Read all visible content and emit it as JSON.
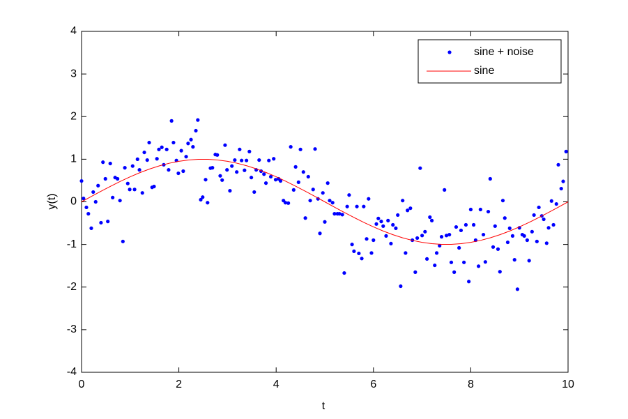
{
  "chart_data": {
    "type": "line",
    "xlabel": "t",
    "ylabel": "y(t)",
    "xlim": [
      0,
      10
    ],
    "xticks": [
      0,
      2,
      4,
      6,
      8,
      10
    ],
    "ylim": [
      -4,
      4
    ],
    "yticks": [
      -4,
      -3,
      -2,
      -1,
      0,
      1,
      2,
      3,
      4
    ],
    "legend": "top-right",
    "series": [
      {
        "name": "sine + noise",
        "color": "#0000ff",
        "style": "markers",
        "x": [
          0,
          0.04,
          0.1,
          0.14,
          0.2,
          0.24,
          0.29,
          0.34,
          0.4,
          0.44,
          0.49,
          0.54,
          0.59,
          0.64,
          0.69,
          0.74,
          0.79,
          0.85,
          0.89,
          0.95,
          0.99,
          1.05,
          1.09,
          1.15,
          1.19,
          1.25,
          1.29,
          1.35,
          1.39,
          1.45,
          1.49,
          1.55,
          1.59,
          1.65,
          1.69,
          1.75,
          1.79,
          1.85,
          1.89,
          1.95,
          1.99,
          2.05,
          2.09,
          2.15,
          2.19,
          2.25,
          2.29,
          2.35,
          2.39,
          2.45,
          2.49,
          2.55,
          2.59,
          2.65,
          2.69,
          2.75,
          2.79,
          2.85,
          2.89,
          2.95,
          2.99,
          3.05,
          3.09,
          3.15,
          3.19,
          3.25,
          3.29,
          3.35,
          3.39,
          3.45,
          3.49,
          3.55,
          3.59,
          3.65,
          3.69,
          3.75,
          3.79,
          3.85,
          3.89,
          3.95,
          3.99,
          4.05,
          4.09,
          4.15,
          4.19,
          4.25,
          4.3,
          4.36,
          4.4,
          4.46,
          4.5,
          4.56,
          4.6,
          4.66,
          4.7,
          4.76,
          4.8,
          4.86,
          4.9,
          4.96,
          5,
          5.06,
          5.1,
          5.16,
          5.2,
          5.26,
          5.3,
          5.36,
          5.4,
          5.46,
          5.5,
          5.56,
          5.6,
          5.66,
          5.7,
          5.76,
          5.8,
          5.86,
          5.9,
          5.96,
          6,
          6.06,
          6.1,
          6.16,
          6.2,
          6.26,
          6.3,
          6.36,
          6.4,
          6.46,
          6.5,
          6.56,
          6.6,
          6.66,
          6.7,
          6.76,
          6.8,
          6.86,
          6.9,
          6.96,
          7,
          7.06,
          7.1,
          7.16,
          7.2,
          7.26,
          7.3,
          7.36,
          7.4,
          7.46,
          7.5,
          7.56,
          7.6,
          7.66,
          7.7,
          7.76,
          7.8,
          7.86,
          7.9,
          7.96,
          8,
          8.06,
          8.1,
          8.16,
          8.2,
          8.26,
          8.3,
          8.36,
          8.4,
          8.46,
          8.5,
          8.56,
          8.6,
          8.66,
          8.7,
          8.76,
          8.8,
          8.86,
          8.9,
          8.96,
          9,
          9.06,
          9.1,
          9.16,
          9.2,
          9.26,
          9.3,
          9.36,
          9.4,
          9.46,
          9.5,
          9.56,
          9.6,
          9.66,
          9.7,
          9.76,
          9.8,
          9.86,
          9.9,
          9.96
        ],
        "values": [
          0.49,
          0.08,
          -0.13,
          -0.28,
          -0.62,
          0.23,
          0,
          0.38,
          -0.49,
          0.93,
          0.54,
          -0.46,
          0.9,
          0.1,
          0.57,
          0.54,
          0.03,
          -0.93,
          0.8,
          0.43,
          0.29,
          0.84,
          0.29,
          1,
          0.75,
          0.21,
          1.16,
          0.98,
          1.39,
          0.34,
          0.36,
          1.01,
          1.23,
          1.28,
          0.87,
          1.23,
          0.75,
          1.9,
          1.39,
          0.97,
          0.67,
          1.2,
          0.72,
          1.06,
          1.37,
          1.46,
          1.29,
          1.67,
          1.92,
          0.05,
          0.11,
          0.52,
          -0.02,
          0.79,
          0.8,
          1.11,
          1.1,
          0.61,
          0.51,
          1.33,
          0.75,
          0.26,
          0.84,
          0.98,
          0.7,
          1.23,
          0.97,
          0.74,
          0.97,
          1.18,
          0.57,
          0.23,
          0.75,
          0.98,
          0.72,
          0.65,
          0.44,
          0.97,
          0.59,
          1.01,
          0.52,
          0.54,
          0.49,
          0.03,
          -0.02,
          -0.03,
          1.29,
          0.28,
          0.82,
          0.46,
          1.23,
          0.7,
          -0.38,
          0.59,
          0.03,
          0.29,
          1.24,
          0.07,
          -0.74,
          0.21,
          -0.47,
          0.44,
          0.03,
          -0.02,
          -0.28,
          -0.28,
          -0.28,
          -0.3,
          -1.67,
          -0.11,
          0.16,
          -1,
          -1.16,
          -0.11,
          -1.21,
          -1.33,
          -0.11,
          -0.87,
          0.07,
          -1.2,
          -0.9,
          -0.52,
          -0.39,
          -0.46,
          -0.57,
          -0.8,
          -0.44,
          -0.98,
          -0.54,
          -0.62,
          -0.31,
          -1.98,
          0.03,
          -1.2,
          -0.2,
          -0.15,
          -0.9,
          -1.65,
          -0.85,
          0.79,
          -0.79,
          -0.7,
          -1.34,
          -0.36,
          -0.44,
          -1.49,
          -1.2,
          -1.03,
          -0.82,
          0.28,
          -0.79,
          -0.77,
          -1.42,
          -1.65,
          -0.59,
          -1.08,
          -0.67,
          -1.42,
          -0.54,
          -1.87,
          -0.18,
          -0.54,
          -0.9,
          -1.51,
          -0.18,
          -0.77,
          -1.41,
          -0.23,
          0.54,
          -1.06,
          -0.57,
          -1.11,
          -1.64,
          0.03,
          -0.38,
          -0.95,
          -0.62,
          -0.8,
          -1.36,
          -2.05,
          -0.61,
          -0.77,
          -0.8,
          -0.9,
          -1.38,
          -0.7,
          -0.31,
          -0.93,
          -0.13,
          -0.33,
          -0.41,
          -0.97,
          -0.61,
          0.02,
          -0.54,
          -0.05,
          0.87,
          0.31,
          0.48,
          1.18
        ]
      },
      {
        "name": "sine",
        "color": "#ff0000",
        "style": "line",
        "x": [
          0,
          0.2,
          0.4,
          0.6,
          0.8,
          1,
          1.2,
          1.4,
          1.6,
          1.8,
          2,
          2.2,
          2.4,
          2.6,
          2.8,
          3,
          3.2,
          3.4,
          3.6,
          3.8,
          4,
          4.2,
          4.4,
          4.6,
          4.8,
          5,
          5.2,
          5.4,
          5.6,
          5.8,
          6,
          6.2,
          6.4,
          6.6,
          6.8,
          7,
          7.2,
          7.4,
          7.6,
          7.8,
          8,
          8.2,
          8.4,
          8.6,
          8.8,
          9,
          9.2,
          9.4,
          9.6,
          9.8,
          10
        ],
        "values": [
          0,
          0.125,
          0.249,
          0.368,
          0.482,
          0.588,
          0.685,
          0.771,
          0.844,
          0.905,
          0.951,
          0.982,
          0.998,
          0.998,
          0.982,
          0.951,
          0.905,
          0.844,
          0.771,
          0.685,
          0.588,
          0.482,
          0.368,
          0.249,
          0.125,
          0,
          -0.125,
          -0.249,
          -0.368,
          -0.482,
          -0.588,
          -0.685,
          -0.771,
          -0.844,
          -0.905,
          -0.951,
          -0.982,
          -0.998,
          -0.998,
          -0.982,
          -0.951,
          -0.905,
          -0.844,
          -0.771,
          -0.685,
          -0.588,
          -0.482,
          -0.368,
          -0.249,
          -0.125,
          0
        ]
      }
    ]
  }
}
